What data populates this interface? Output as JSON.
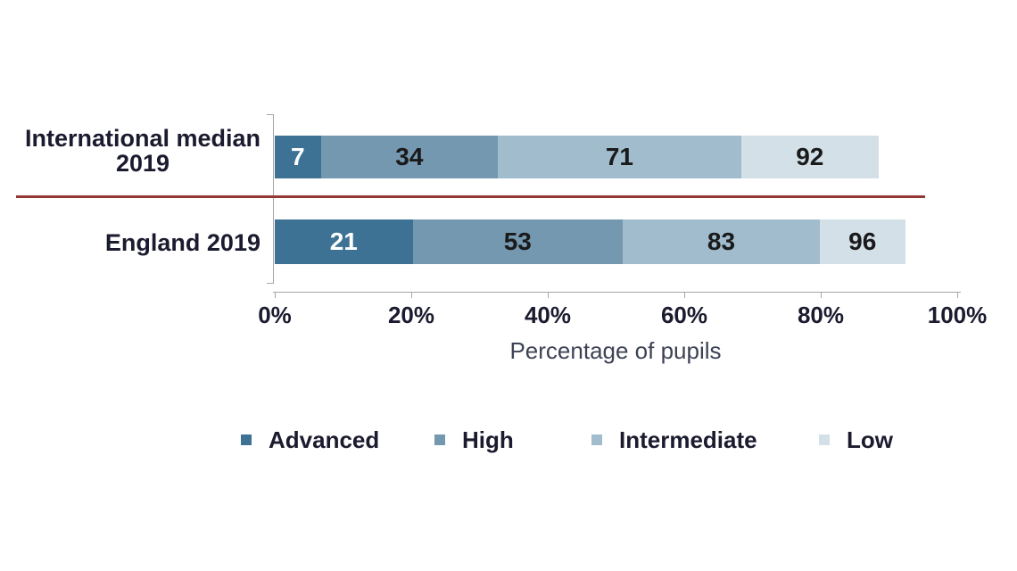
{
  "chart_data": {
    "type": "bar",
    "orientation": "horizontal",
    "stacked": true,
    "categories": [
      "International median 2019",
      "England 2019"
    ],
    "category_label_lines": [
      [
        "International median",
        "2019"
      ],
      [
        "England 2019"
      ]
    ],
    "series": [
      {
        "name": "Advanced",
        "color": "#3D7294",
        "cumulative_values": [
          7,
          21
        ]
      },
      {
        "name": "High",
        "color": "#7498B0",
        "cumulative_values": [
          34,
          53
        ]
      },
      {
        "name": "Intermediate",
        "color": "#A0BCCD",
        "cumulative_values": [
          71,
          83
        ]
      },
      {
        "name": "Low",
        "color": "#D4E0E8",
        "cumulative_values": [
          92,
          96
        ]
      }
    ],
    "values_are_cumulative": true,
    "xlabel": "Percentage of pupils",
    "x_tick_labels": [
      "0%",
      "20%",
      "40%",
      "60%",
      "80%",
      "100%"
    ],
    "xlim": [
      0,
      100
    ],
    "grid": false,
    "legend_position": "bottom"
  },
  "colors": {
    "background": "#FFFFFF",
    "separator_line": "#943634",
    "axis": "#A6A6A6",
    "label_dark": "#1B1B2F",
    "segment_label_dark": "#1A1A1A",
    "segment_label_light": "#FFFFFF",
    "axis_title": "#3D4254"
  }
}
